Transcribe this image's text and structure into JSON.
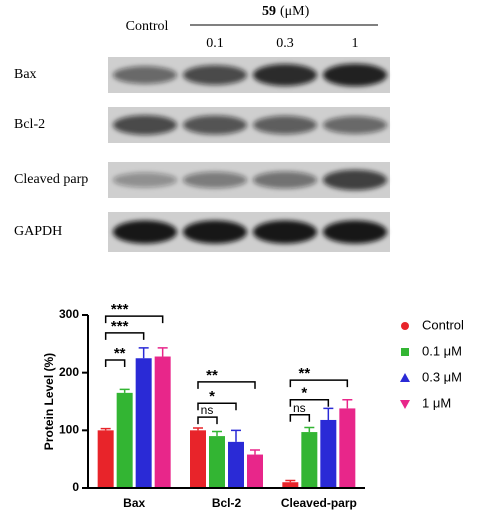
{
  "blot": {
    "header": "Control",
    "treatment": "59",
    "unit": "(μM)",
    "concentrations": [
      "0.1",
      "0.3",
      "1"
    ],
    "rows": [
      "Bax",
      "Bcl-2",
      "Cleaved parp",
      "GAPDH"
    ]
  },
  "chart_data": {
    "type": "bar",
    "ylabel": "Protein Level (%)",
    "categories": [
      "Bax",
      "Bcl-2",
      "Cleaved-parp"
    ],
    "series": [
      {
        "name": "Control",
        "color": "#e8242a",
        "marker": "circle",
        "values": [
          100,
          100,
          10
        ],
        "errors": [
          3,
          4,
          3
        ]
      },
      {
        "name": "0.1 μM",
        "color": "#33b533",
        "marker": "square",
        "values": [
          165,
          90,
          97
        ],
        "errors": [
          6,
          8,
          8
        ]
      },
      {
        "name": "0.3 μM",
        "color": "#2a2ad6",
        "marker": "triangle",
        "values": [
          225,
          80,
          118
        ],
        "errors": [
          18,
          20,
          20
        ]
      },
      {
        "name": "1 μM",
        "color": "#e8268a",
        "marker": "triangle-down",
        "values": [
          228,
          58,
          138
        ],
        "errors": [
          15,
          8,
          15
        ]
      }
    ],
    "annotations": [
      {
        "label": "**",
        "category": 0,
        "from": 0,
        "to": 1,
        "y": 222
      },
      {
        "label": "***",
        "category": 0,
        "from": 0,
        "to": 2,
        "y": 269
      },
      {
        "label": "***",
        "category": 0,
        "from": 0,
        "to": 3,
        "y": 298
      },
      {
        "label": "ns",
        "category": 1,
        "from": 0,
        "to": 1,
        "y": 123
      },
      {
        "label": "*",
        "category": 1,
        "from": 0,
        "to": 2,
        "y": 147
      },
      {
        "label": "**",
        "category": 1,
        "from": 0,
        "to": 3,
        "y": 184
      },
      {
        "label": "ns",
        "category": 2,
        "from": 0,
        "to": 1,
        "y": 127
      },
      {
        "label": "*",
        "category": 2,
        "from": 0,
        "to": 2,
        "y": 153
      },
      {
        "label": "**",
        "category": 2,
        "from": 0,
        "to": 3,
        "y": 187
      }
    ],
    "ylim": [
      0,
      300
    ],
    "yticks": [
      0,
      100,
      200,
      300
    ],
    "legend": "right"
  }
}
